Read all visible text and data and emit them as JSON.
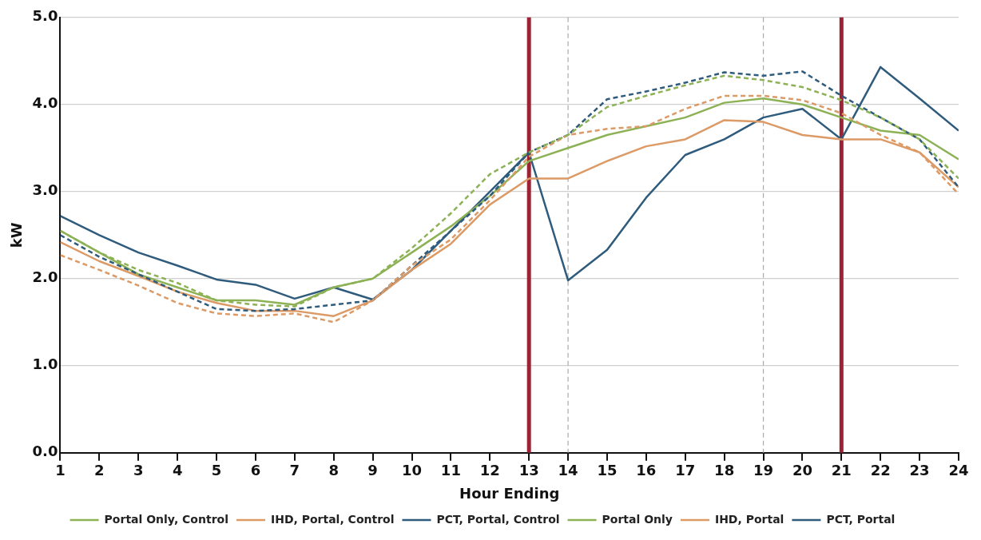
{
  "chart_data": {
    "type": "line",
    "xlabel": "Hour Ending",
    "ylabel": "kW",
    "x": [
      1,
      2,
      3,
      4,
      5,
      6,
      7,
      8,
      9,
      10,
      11,
      12,
      13,
      14,
      15,
      16,
      17,
      18,
      19,
      20,
      21,
      22,
      23,
      24
    ],
    "series": [
      {
        "name": "Portal Only, Control",
        "color": "#8db255",
        "line_style": "dashed",
        "values": [
          2.55,
          2.3,
          2.1,
          1.95,
          1.75,
          1.7,
          1.68,
          1.9,
          2.0,
          2.35,
          2.75,
          3.2,
          3.45,
          3.65,
          3.97,
          4.1,
          4.22,
          4.33,
          4.28,
          4.2,
          4.05,
          3.85,
          3.6,
          3.15
        ]
      },
      {
        "name": "IHD, Portal, Control",
        "color": "#dc9a66",
        "line_style": "dashed",
        "values": [
          2.27,
          2.1,
          1.92,
          1.72,
          1.6,
          1.57,
          1.6,
          1.5,
          1.75,
          2.15,
          2.45,
          2.9,
          3.4,
          3.65,
          3.72,
          3.75,
          3.95,
          4.1,
          4.1,
          4.05,
          3.9,
          3.65,
          3.45,
          2.97
        ]
      },
      {
        "name": "PCT, Portal, Control",
        "color": "#2f5b7c",
        "line_style": "dashed",
        "values": [
          2.5,
          2.25,
          2.05,
          1.85,
          1.65,
          1.63,
          1.65,
          1.7,
          1.75,
          2.15,
          2.55,
          2.95,
          3.45,
          3.65,
          4.06,
          4.15,
          4.25,
          4.37,
          4.33,
          4.38,
          4.1,
          3.85,
          3.6,
          3.05
        ]
      },
      {
        "name": "Portal Only",
        "color": "#8db255",
        "line_style": "solid",
        "values": [
          2.55,
          2.3,
          2.05,
          1.9,
          1.75,
          1.75,
          1.7,
          1.9,
          2.0,
          2.3,
          2.6,
          2.95,
          3.35,
          3.5,
          3.65,
          3.75,
          3.85,
          4.02,
          4.07,
          4.0,
          3.85,
          3.7,
          3.65,
          3.37
        ]
      },
      {
        "name": "IHD, Portal",
        "color": "#dc9a66",
        "line_style": "solid",
        "values": [
          2.42,
          2.2,
          2.03,
          1.85,
          1.72,
          1.63,
          1.63,
          1.57,
          1.75,
          2.1,
          2.4,
          2.85,
          3.15,
          3.15,
          3.35,
          3.52,
          3.6,
          3.82,
          3.8,
          3.65,
          3.6,
          3.6,
          3.45,
          3.05
        ]
      },
      {
        "name": "PCT, Portal",
        "color": "#2f5b7c",
        "line_style": "solid",
        "values": [
          2.72,
          2.5,
          2.3,
          2.15,
          1.99,
          1.93,
          1.77,
          1.9,
          1.76,
          2.1,
          2.55,
          3.0,
          3.45,
          1.98,
          2.33,
          2.93,
          3.42,
          3.6,
          3.85,
          3.95,
          3.6,
          4.43,
          4.07,
          3.7
        ]
      }
    ],
    "xlim": [
      1,
      24
    ],
    "xticks": [
      1,
      2,
      3,
      4,
      5,
      6,
      7,
      8,
      9,
      10,
      11,
      12,
      13,
      14,
      15,
      16,
      17,
      18,
      19,
      20,
      21,
      22,
      23,
      24
    ],
    "ylim": [
      0,
      5
    ],
    "yticks": [
      {
        "value": 0,
        "label": "0.0"
      },
      {
        "value": 1,
        "label": "1.0"
      },
      {
        "value": 2,
        "label": "2.0"
      },
      {
        "value": 3,
        "label": "3.0"
      },
      {
        "value": 4,
        "label": "4.0"
      },
      {
        "value": 5,
        "label": "5.0"
      }
    ],
    "ref_lines": [
      {
        "axis": "x",
        "value": 13,
        "color": "#9b2335",
        "line_style": "solid"
      },
      {
        "axis": "x",
        "value": 21,
        "color": "#9b2335",
        "line_style": "solid"
      },
      {
        "axis": "x",
        "value": 14,
        "color": "#aaaaaa",
        "line_style": "dashed"
      },
      {
        "axis": "x",
        "value": 19,
        "color": "#aaaaaa",
        "line_style": "dashed"
      }
    ],
    "grid": "y",
    "legend": "bottom",
    "marker": "none"
  }
}
